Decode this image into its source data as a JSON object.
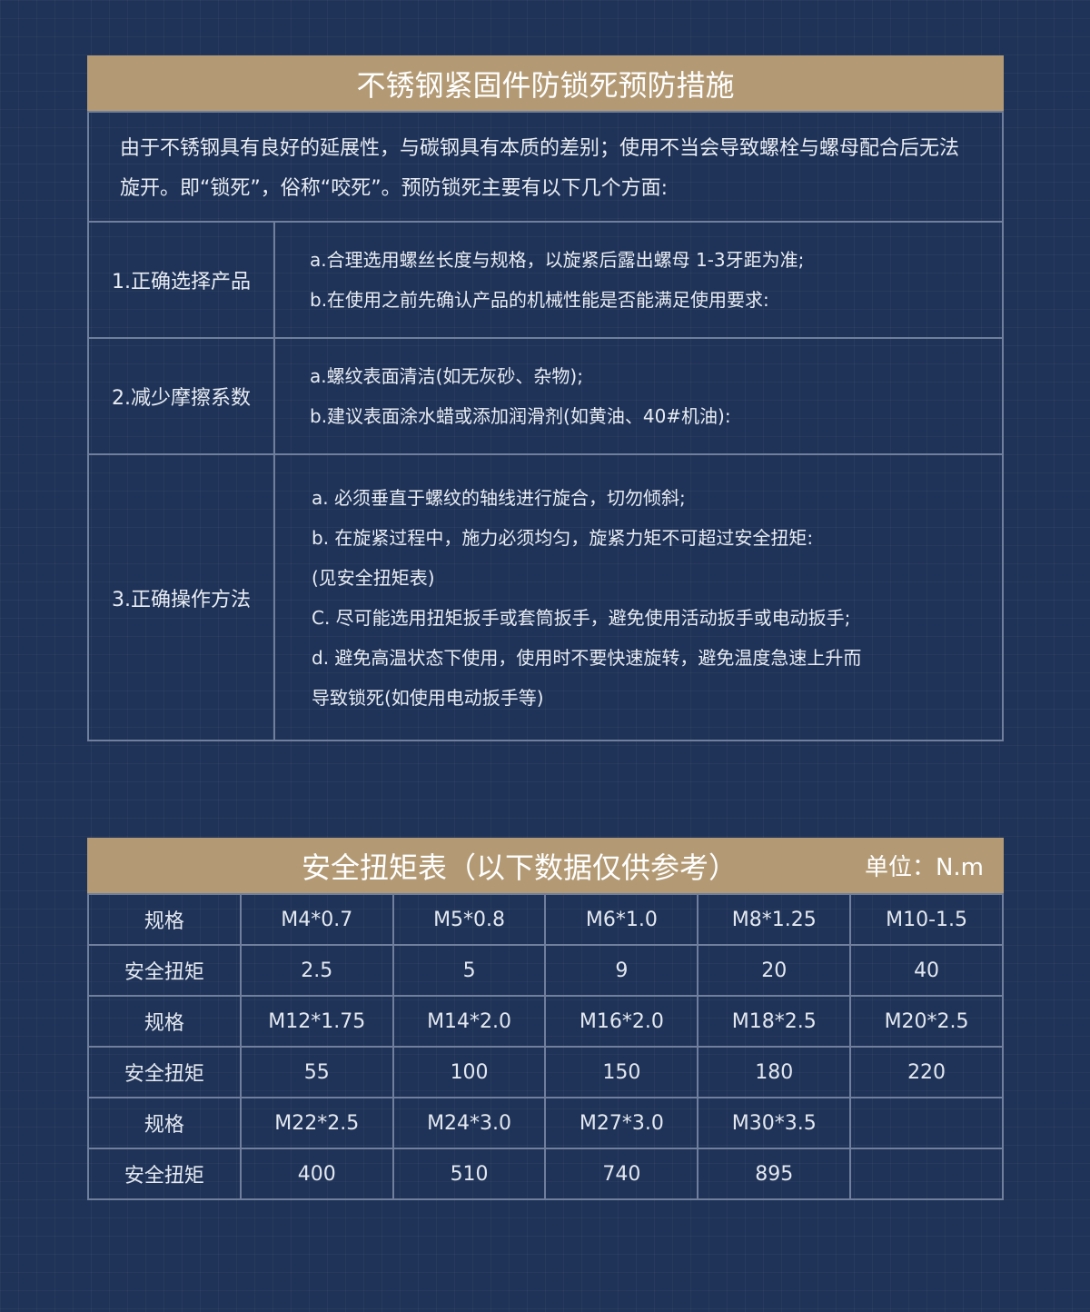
{
  "section1": {
    "title": "不锈钢紧固件防锁死预防措施",
    "intro": "由于不锈钢具有良好的延展性，与碳钢具有本质的差别；使用不当会导致螺栓与螺母配合后无法旋开。即“锁死”，俗称“咬死”。预防锁死主要有以下几个方面:",
    "rows": [
      {
        "label": "1.正确选择产品",
        "items": [
          "a.合理选用螺丝长度与规格，以旋紧后露出螺母 1-3牙距为准;",
          "b.在使用之前先确认产品的机械性能是否能满足使用要求:"
        ]
      },
      {
        "label": "2.减少摩擦系数",
        "items": [
          "a.螺纹表面清洁(如无灰砂、杂物);",
          "b.建议表面涂水蜡或添加润滑剂(如黄油、40#机油):"
        ]
      },
      {
        "label": "3.正确操作方法",
        "items": [
          "a. 必须垂直于螺纹的轴线进行旋合，切勿倾斜;",
          "b. 在旋紧过程中，施力必须均匀，旋紧力矩不可超过安全扭矩:",
          "(见安全扭矩表)",
          "C. 尽可能选用扭矩扳手或套筒扳手，避免使用活动扳手或电动扳手;",
          "d. 避免高温状态下使用，使用时不要快速旋转，避免温度急速上升而",
          "导致锁死(如使用电动扳手等)"
        ]
      }
    ]
  },
  "section2": {
    "title": "安全扭矩表（以下数据仅供参考）",
    "unit": "单位：N.m",
    "rows": [
      [
        "规格",
        "M4*0.7",
        "M5*0.8",
        "M6*1.0",
        "M8*1.25",
        "M10-1.5"
      ],
      [
        "安全扭矩",
        "2.5",
        "5",
        "9",
        "20",
        "40"
      ],
      [
        "规格",
        "M12*1.75",
        "M14*2.0",
        "M16*2.0",
        "M18*2.5",
        "M20*2.5"
      ],
      [
        "安全扭矩",
        "55",
        "100",
        "150",
        "180",
        "220"
      ],
      [
        "规格",
        "M22*2.5",
        "M24*3.0",
        "M27*3.0",
        "M30*3.5",
        ""
      ],
      [
        "安全扭矩",
        "400",
        "510",
        "740",
        "895",
        ""
      ]
    ]
  },
  "colors": {
    "background": "#1f3358",
    "header": "#b39a74",
    "border": "#6f7f9c"
  }
}
